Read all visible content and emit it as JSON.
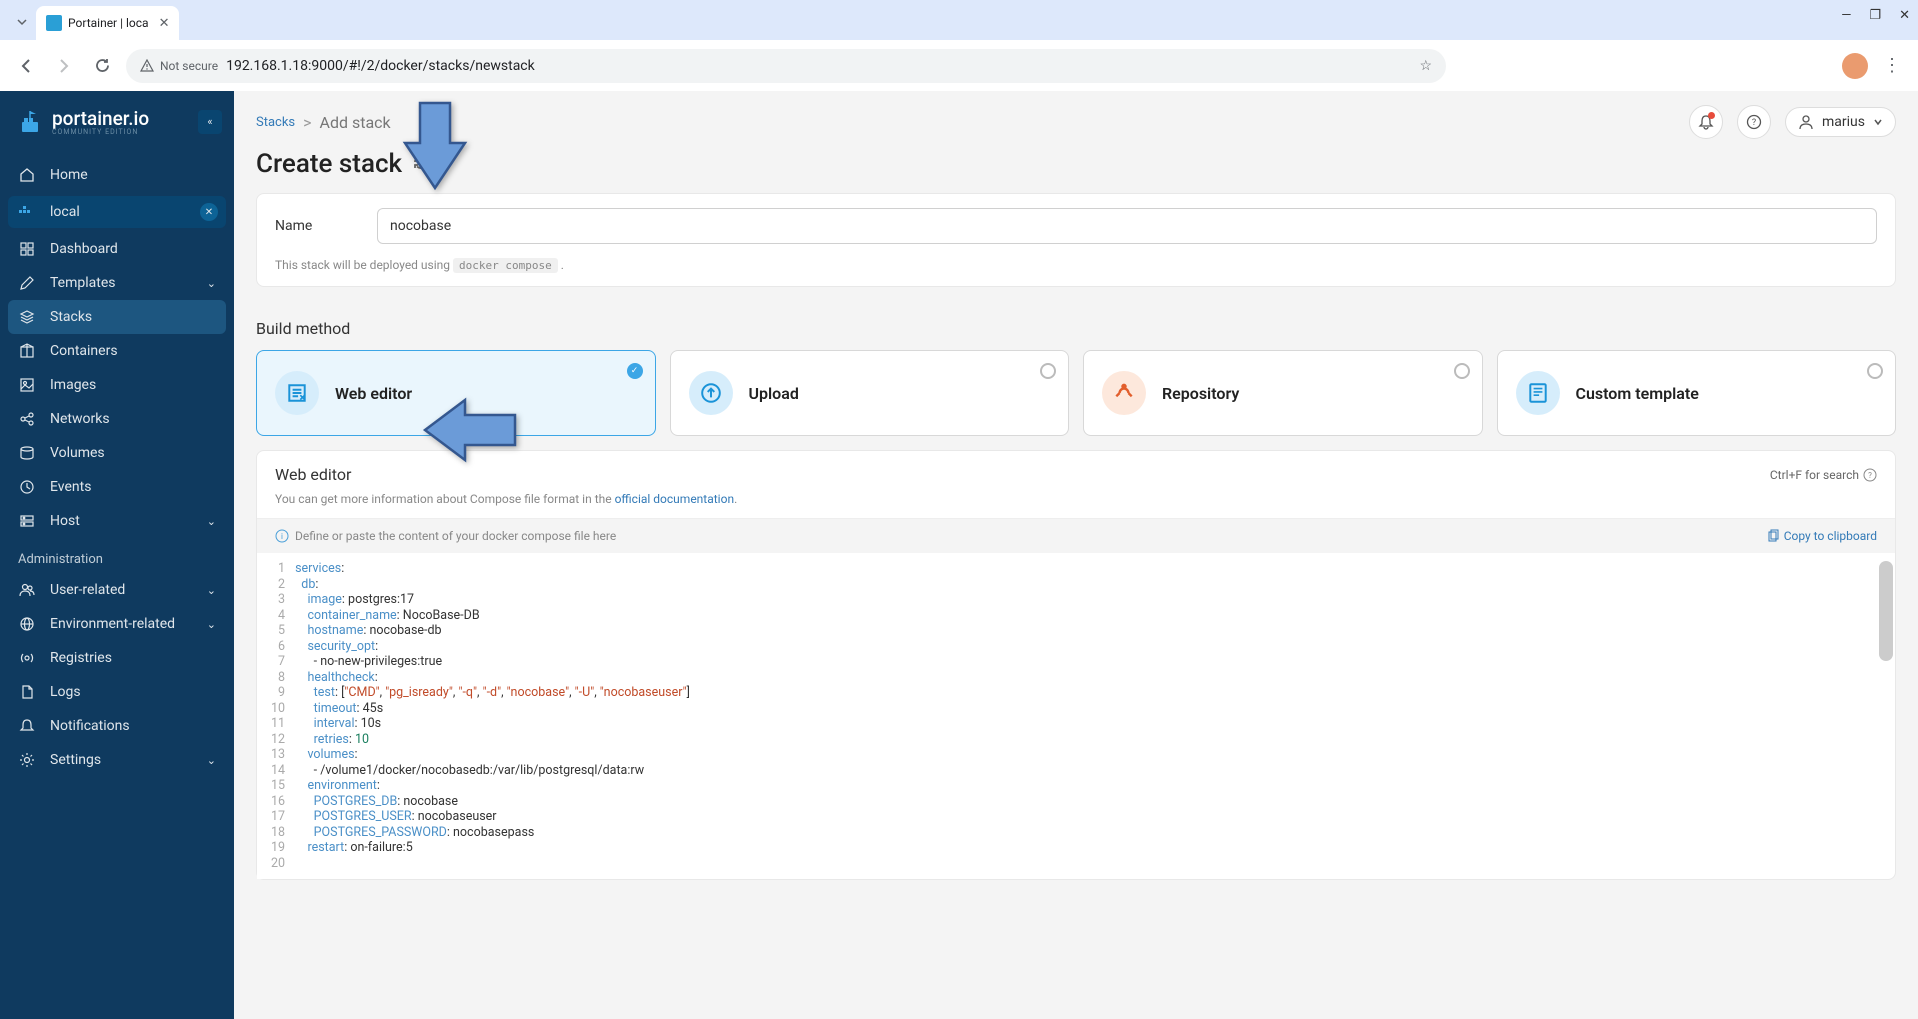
{
  "browser": {
    "tab_title": "Portainer | loca",
    "not_secure": "Not secure",
    "url": "192.168.1.18:9000/#!/2/docker/stacks/newstack"
  },
  "sidebar": {
    "logo": "portainer.io",
    "logo_sub": "COMMUNITY EDITION",
    "home": "Home",
    "env_name": "local",
    "items": [
      {
        "label": "Dashboard",
        "icon": "grid"
      },
      {
        "label": "Templates",
        "icon": "edit",
        "chevron": true
      },
      {
        "label": "Stacks",
        "icon": "layers",
        "selected": true
      },
      {
        "label": "Containers",
        "icon": "box"
      },
      {
        "label": "Images",
        "icon": "image"
      },
      {
        "label": "Networks",
        "icon": "share"
      },
      {
        "label": "Volumes",
        "icon": "disc"
      },
      {
        "label": "Events",
        "icon": "clock"
      },
      {
        "label": "Host",
        "icon": "server",
        "chevron": true
      }
    ],
    "admin_label": "Administration",
    "admin_items": [
      {
        "label": "User-related",
        "icon": "users",
        "chevron": true
      },
      {
        "label": "Environment-related",
        "icon": "globe",
        "chevron": true
      },
      {
        "label": "Registries",
        "icon": "radio"
      },
      {
        "label": "Logs",
        "icon": "file"
      },
      {
        "label": "Notifications",
        "icon": "bell"
      },
      {
        "label": "Settings",
        "icon": "gear",
        "chevron": true
      }
    ]
  },
  "breadcrumb": {
    "root": "Stacks",
    "current": "Add stack"
  },
  "user": "marius",
  "page_title": "Create stack",
  "form": {
    "name_label": "Name",
    "name_value": "nocobase",
    "deploy_note_prefix": "This stack will be deployed using ",
    "deploy_note_code": "docker compose"
  },
  "build": {
    "heading": "Build method",
    "methods": [
      {
        "title": "Web editor",
        "selected": true,
        "icon_color": "blue"
      },
      {
        "title": "Upload",
        "icon_color": "blue"
      },
      {
        "title": "Repository",
        "icon_color": "orange"
      },
      {
        "title": "Custom template",
        "icon_color": "blue"
      }
    ]
  },
  "editor": {
    "title": "Web editor",
    "search_hint": "Ctrl+F for search",
    "desc_prefix": "You can get more information about Compose file format in the ",
    "desc_link": "official documentation",
    "placeholder": "Define or paste the content of your docker compose file here",
    "copy": "Copy to clipboard",
    "code_lines": [
      [
        {
          "t": "key",
          "v": "services"
        },
        {
          "t": "plain",
          "v": ":"
        }
      ],
      [
        {
          "t": "plain",
          "v": "  "
        },
        {
          "t": "key",
          "v": "db"
        },
        {
          "t": "plain",
          "v": ":"
        }
      ],
      [
        {
          "t": "plain",
          "v": "    "
        },
        {
          "t": "key",
          "v": "image"
        },
        {
          "t": "plain",
          "v": ": postgres:17"
        }
      ],
      [
        {
          "t": "plain",
          "v": "    "
        },
        {
          "t": "key",
          "v": "container_name"
        },
        {
          "t": "plain",
          "v": ": NocoBase-DB"
        }
      ],
      [
        {
          "t": "plain",
          "v": "    "
        },
        {
          "t": "key",
          "v": "hostname"
        },
        {
          "t": "plain",
          "v": ": nocobase-db"
        }
      ],
      [
        {
          "t": "plain",
          "v": "    "
        },
        {
          "t": "key",
          "v": "security_opt"
        },
        {
          "t": "plain",
          "v": ":"
        }
      ],
      [
        {
          "t": "plain",
          "v": "      - no-new-privileges:true"
        }
      ],
      [
        {
          "t": "plain",
          "v": "    "
        },
        {
          "t": "key",
          "v": "healthcheck"
        },
        {
          "t": "plain",
          "v": ":"
        }
      ],
      [
        {
          "t": "plain",
          "v": "      "
        },
        {
          "t": "key",
          "v": "test"
        },
        {
          "t": "plain",
          "v": ": ["
        },
        {
          "t": "str",
          "v": "\"CMD\""
        },
        {
          "t": "plain",
          "v": ", "
        },
        {
          "t": "str",
          "v": "\"pg_isready\""
        },
        {
          "t": "plain",
          "v": ", "
        },
        {
          "t": "str",
          "v": "\"-q\""
        },
        {
          "t": "plain",
          "v": ", "
        },
        {
          "t": "str",
          "v": "\"-d\""
        },
        {
          "t": "plain",
          "v": ", "
        },
        {
          "t": "str",
          "v": "\"nocobase\""
        },
        {
          "t": "plain",
          "v": ", "
        },
        {
          "t": "str",
          "v": "\"-U\""
        },
        {
          "t": "plain",
          "v": ", "
        },
        {
          "t": "str",
          "v": "\"nocobaseuser\""
        },
        {
          "t": "plain",
          "v": "]"
        }
      ],
      [
        {
          "t": "plain",
          "v": "      "
        },
        {
          "t": "key",
          "v": "timeout"
        },
        {
          "t": "plain",
          "v": ": 45s"
        }
      ],
      [
        {
          "t": "plain",
          "v": "      "
        },
        {
          "t": "key",
          "v": "interval"
        },
        {
          "t": "plain",
          "v": ": 10s"
        }
      ],
      [
        {
          "t": "plain",
          "v": "      "
        },
        {
          "t": "key",
          "v": "retries"
        },
        {
          "t": "plain",
          "v": ": "
        },
        {
          "t": "num",
          "v": "10"
        }
      ],
      [
        {
          "t": "plain",
          "v": "    "
        },
        {
          "t": "key",
          "v": "volumes"
        },
        {
          "t": "plain",
          "v": ":"
        }
      ],
      [
        {
          "t": "plain",
          "v": "      - /volume1/docker/nocobasedb:/var/lib/postgresql/data:rw"
        }
      ],
      [
        {
          "t": "plain",
          "v": "    "
        },
        {
          "t": "key",
          "v": "environment"
        },
        {
          "t": "plain",
          "v": ":"
        }
      ],
      [
        {
          "t": "plain",
          "v": "      "
        },
        {
          "t": "key",
          "v": "POSTGRES_DB"
        },
        {
          "t": "plain",
          "v": ": nocobase"
        }
      ],
      [
        {
          "t": "plain",
          "v": "      "
        },
        {
          "t": "key",
          "v": "POSTGRES_USER"
        },
        {
          "t": "plain",
          "v": ": nocobaseuser"
        }
      ],
      [
        {
          "t": "plain",
          "v": "      "
        },
        {
          "t": "key",
          "v": "POSTGRES_PASSWORD"
        },
        {
          "t": "plain",
          "v": ": nocobasepass"
        }
      ],
      [
        {
          "t": "plain",
          "v": "    "
        },
        {
          "t": "key",
          "v": "restart"
        },
        {
          "t": "plain",
          "v": ": on-failure:5"
        }
      ],
      [
        {
          "t": "plain",
          "v": ""
        }
      ]
    ]
  }
}
